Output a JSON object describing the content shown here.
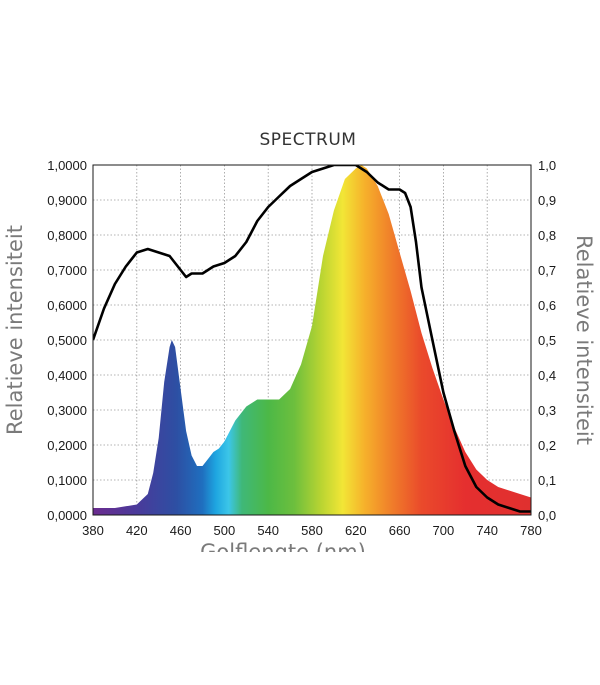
{
  "chart_data": {
    "type": "line",
    "title": "SPECTRUM",
    "xlabel": "Golflengte (nm)",
    "ylabel_left": "Relatieve intensiteit",
    "ylabel_right": "Relatieve intensiteit",
    "xlim": [
      380,
      780
    ],
    "ylim": [
      0,
      1
    ],
    "grid": true,
    "x_ticks": [
      "380",
      "420",
      "460",
      "500",
      "540",
      "580",
      "620",
      "660",
      "700",
      "740",
      "780"
    ],
    "y_ticks_left": [
      "0,0000",
      "0,1000",
      "0,2000",
      "0,3000",
      "0,4000",
      "0,5000",
      "0,6000",
      "0,7000",
      "0,8000",
      "0,9000",
      "1,0000"
    ],
    "y_ticks_right": [
      "0,0",
      "0,1",
      "0,2",
      "0,3",
      "0,4",
      "0,5",
      "0,6",
      "0,7",
      "0,8",
      "0,9",
      "1,0"
    ],
    "series": [
      {
        "style": "spectral-fill",
        "x": [
          380,
          400,
          420,
          430,
          435,
          440,
          445,
          450,
          452,
          455,
          460,
          465,
          470,
          475,
          480,
          485,
          490,
          495,
          500,
          510,
          520,
          530,
          540,
          550,
          560,
          570,
          580,
          590,
          600,
          610,
          620,
          625,
          630,
          640,
          650,
          660,
          670,
          680,
          690,
          700,
          710,
          720,
          730,
          740,
          750,
          760,
          770,
          780
        ],
        "y": [
          0.02,
          0.02,
          0.03,
          0.06,
          0.12,
          0.22,
          0.38,
          0.48,
          0.5,
          0.48,
          0.36,
          0.24,
          0.17,
          0.14,
          0.14,
          0.16,
          0.18,
          0.19,
          0.21,
          0.27,
          0.31,
          0.33,
          0.33,
          0.33,
          0.36,
          0.43,
          0.54,
          0.74,
          0.87,
          0.96,
          0.99,
          1.0,
          0.99,
          0.94,
          0.86,
          0.75,
          0.64,
          0.52,
          0.42,
          0.33,
          0.25,
          0.18,
          0.13,
          0.1,
          0.08,
          0.07,
          0.06,
          0.05
        ]
      },
      {
        "style": "line",
        "color": "#000000",
        "x": [
          380,
          390,
          400,
          410,
          420,
          430,
          440,
          450,
          460,
          465,
          470,
          480,
          490,
          500,
          510,
          520,
          530,
          540,
          550,
          560,
          570,
          580,
          590,
          600,
          610,
          620,
          630,
          640,
          650,
          660,
          665,
          670,
          675,
          680,
          690,
          700,
          710,
          720,
          730,
          740,
          750,
          760,
          770,
          780
        ],
        "y": [
          0.5,
          0.59,
          0.66,
          0.71,
          0.75,
          0.76,
          0.75,
          0.74,
          0.7,
          0.68,
          0.69,
          0.69,
          0.71,
          0.72,
          0.74,
          0.78,
          0.84,
          0.88,
          0.91,
          0.94,
          0.96,
          0.98,
          0.99,
          1.0,
          1.0,
          1.0,
          0.98,
          0.95,
          0.93,
          0.93,
          0.92,
          0.88,
          0.78,
          0.65,
          0.5,
          0.35,
          0.24,
          0.14,
          0.08,
          0.05,
          0.03,
          0.02,
          0.01,
          0.01
        ]
      }
    ]
  }
}
